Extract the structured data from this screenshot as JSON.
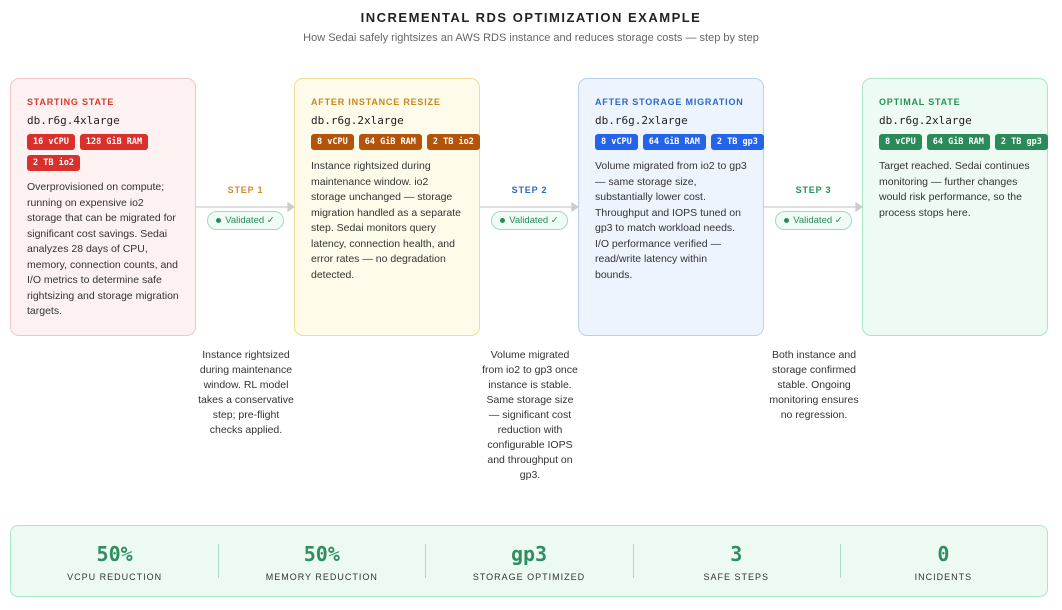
{
  "header": {
    "title": "INCREMENTAL RDS OPTIMIZATION EXAMPLE",
    "subtitle": "How Sedai safely rightsizes an AWS RDS instance and reduces storage costs — step by step"
  },
  "cards": [
    {
      "label": "STARTING STATE",
      "instance": "db.r6g.4xlarge",
      "tags": [
        "16 vCPU",
        "128 GiB RAM",
        "2 TB io2"
      ],
      "description": "Overprovisioned on compute; running on expensive io2 storage that can be migrated for significant cost savings. Sedai analyzes 28 days of CPU, memory, connection counts, and I/O metrics to determine safe rightsizing and storage migration targets."
    },
    {
      "label": "AFTER INSTANCE RESIZE",
      "instance": "db.r6g.2xlarge",
      "tags": [
        "8 vCPU",
        "64 GiB RAM",
        "2 TB io2"
      ],
      "description": "Instance rightsized during maintenance window. io2 storage unchanged — storage migration handled as a separate step. Sedai monitors query latency, connection health, and error rates — no degradation detected."
    },
    {
      "label": "AFTER STORAGE MIGRATION",
      "instance": "db.r6g.2xlarge",
      "tags": [
        "8 vCPU",
        "64 GiB RAM",
        "2 TB gp3"
      ],
      "description": "Volume migrated from io2 to gp3 — same storage size, substantially lower cost. Throughput and IOPS tuned on gp3 to match workload needs. I/O performance verified — read/write latency within bounds."
    },
    {
      "label": "OPTIMAL STATE",
      "instance": "db.r6g.2xlarge",
      "tags": [
        "8 vCPU",
        "64 GiB RAM",
        "2 TB gp3"
      ],
      "description": "Target reached. Sedai continues monitoring — further changes would risk performance, so the process stops here."
    }
  ],
  "steps": [
    {
      "label": "STEP 1",
      "status": "Validated ✓",
      "note": "Instance rightsized during maintenance window. RL model takes a conservative step; pre-flight checks applied."
    },
    {
      "label": "STEP 2",
      "status": "Validated ✓",
      "note": "Volume migrated from io2 to gp3 once instance is stable. Same storage size — significant cost reduction with configurable IOPS and throughput on gp3."
    },
    {
      "label": "STEP 3",
      "status": "Validated ✓",
      "note": "Both instance and storage confirmed stable. Ongoing monitoring ensures no regression."
    }
  ],
  "summary": [
    {
      "value": "50%",
      "label": "VCPU REDUCTION"
    },
    {
      "value": "50%",
      "label": "MEMORY REDUCTION"
    },
    {
      "value": "gp3",
      "label": "STORAGE OPTIMIZED"
    },
    {
      "value": "3",
      "label": "SAFE STEPS"
    },
    {
      "value": "0",
      "label": "INCIDENTS"
    }
  ]
}
